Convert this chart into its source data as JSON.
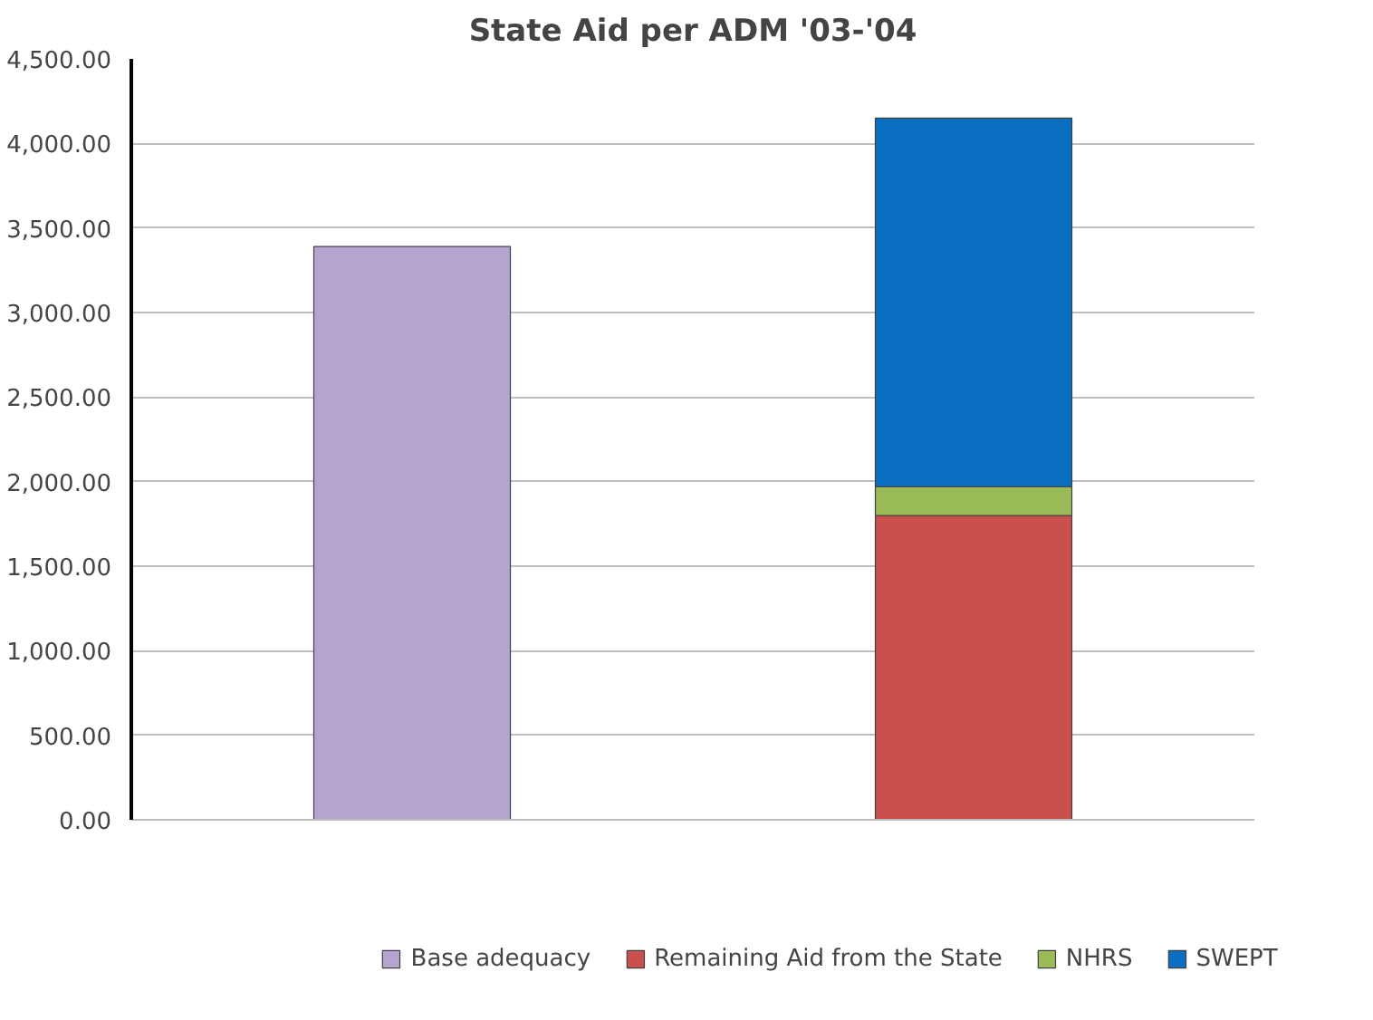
{
  "chart_data": {
    "type": "bar",
    "title": "State Aid per ADM '03-'04",
    "categories": [
      null,
      null
    ],
    "stacked": true,
    "series": [
      {
        "name": "Base adequacy",
        "color": "#b4a5d0",
        "values": [
          3390,
          null
        ]
      },
      {
        "name": "Remaining Aid from the State",
        "color": "#c9504c",
        "values": [
          null,
          1800
        ]
      },
      {
        "name": "NHRS",
        "color": "#9bbb59",
        "values": [
          null,
          170
        ]
      },
      {
        "name": "SWEPT",
        "color": "#0a6fc0",
        "values": [
          null,
          2180
        ]
      }
    ],
    "ylim": [
      0,
      4500
    ],
    "yticks": [
      {
        "value": 0,
        "label": "0.00"
      },
      {
        "value": 500,
        "label": "500.00"
      },
      {
        "value": 1000,
        "label": "1,000.00"
      },
      {
        "value": 1500,
        "label": "1,500.00"
      },
      {
        "value": 2000,
        "label": "2,000.00"
      },
      {
        "value": 2500,
        "label": "2,500.00"
      },
      {
        "value": 3000,
        "label": "3,000.00"
      },
      {
        "value": 3500,
        "label": "3,500.00"
      },
      {
        "value": 4000,
        "label": "4,000.00"
      },
      {
        "value": 4500,
        "label": "4,500.00"
      }
    ],
    "grid": "y",
    "legend": "bottom",
    "tick_labels": "y"
  }
}
